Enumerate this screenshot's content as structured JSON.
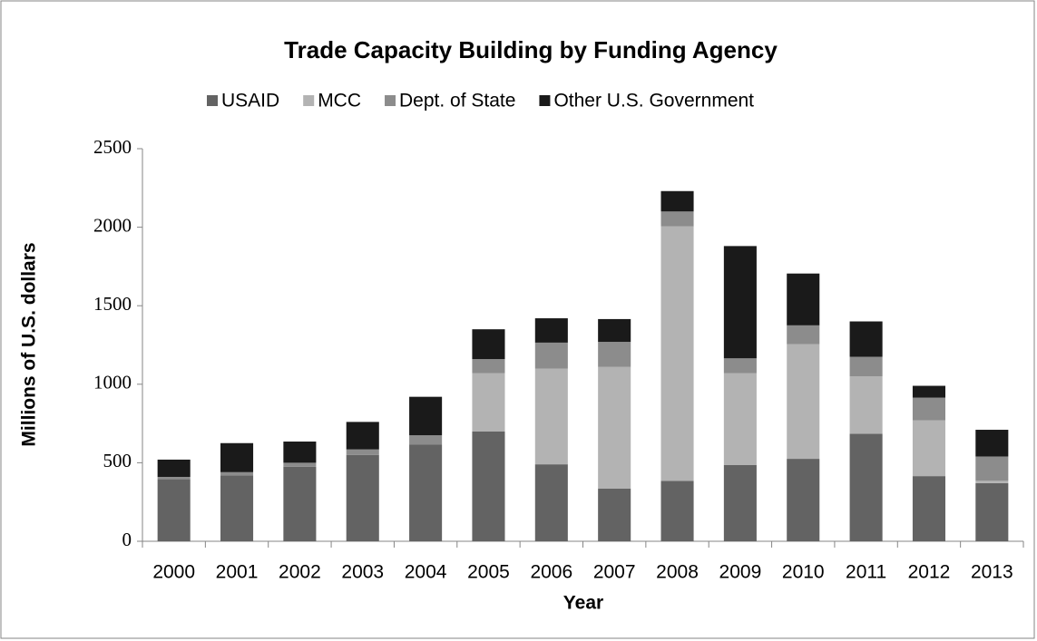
{
  "chart_data": {
    "type": "stacked_bar",
    "title": "Trade Capacity Building by Funding Agency",
    "x_label": "Year",
    "y_label": "Millions of U.S. dollars",
    "categories": [
      "2000",
      "2001",
      "2002",
      "2003",
      "2004",
      "2005",
      "2006",
      "2007",
      "2008",
      "2009",
      "2010",
      "2011",
      "2012",
      "2013"
    ],
    "series": [
      {
        "name": "USAID",
        "color": "#636363",
        "values": [
          395,
          420,
          475,
          550,
          615,
          700,
          490,
          335,
          385,
          485,
          525,
          685,
          415,
          370
        ]
      },
      {
        "name": "MCC",
        "color": "#b3b3b3",
        "values": [
          0,
          0,
          0,
          0,
          0,
          370,
          610,
          775,
          1620,
          585,
          730,
          365,
          355,
          15
        ]
      },
      {
        "name": "Dept. of State",
        "color": "#8c8c8c",
        "values": [
          15,
          20,
          25,
          35,
          60,
          90,
          165,
          160,
          95,
          95,
          120,
          125,
          145,
          155
        ]
      },
      {
        "name": "Other U.S. Government",
        "color": "#1a1a1a",
        "values": [
          110,
          185,
          135,
          175,
          245,
          190,
          155,
          145,
          130,
          715,
          330,
          225,
          75,
          170
        ]
      }
    ],
    "ylim": [
      0,
      2500
    ],
    "yticks": [
      0,
      500,
      1000,
      1500,
      2000,
      2500
    ],
    "grid": false,
    "legend": "top"
  }
}
